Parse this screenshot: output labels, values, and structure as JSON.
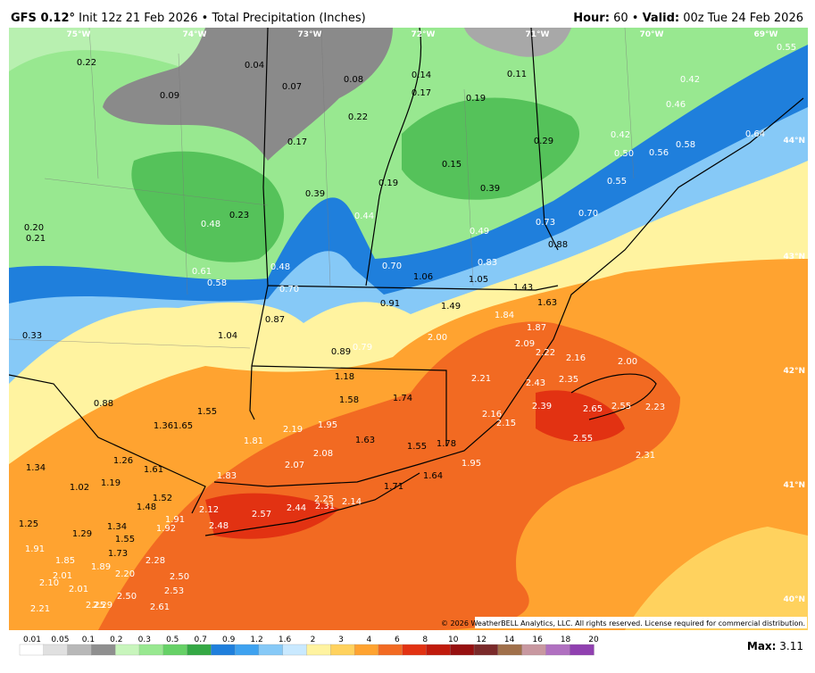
{
  "header": {
    "model": "GFS 0.12°",
    "init": "Init 12z 21 Feb 2026",
    "sep": "•",
    "product": "Total Precipitation (Inches)",
    "hour_label": "Hour:",
    "hour": "60",
    "valid_label": "Valid:",
    "valid": "00z Tue 24 Feb 2026"
  },
  "longitudes": [
    "75°W",
    "74°W",
    "73°W",
    "72°W",
    "71°W",
    "70°W",
    "69°W"
  ],
  "latitudes": [
    "44°N",
    "43°N",
    "42°N",
    "41°N",
    "40°N"
  ],
  "station_values": [
    "0.22",
    "0.04",
    "0.07",
    "0.08",
    "0.14",
    "0.11",
    "0.55",
    "0.09",
    "0.17",
    "0.19",
    "0.42",
    "0.46",
    "0.22",
    "0.17",
    "0.29",
    "0.42",
    "0.58",
    "0.64",
    "0.15",
    "0.50",
    "0.56",
    "0.19",
    "0.39",
    "0.39",
    "0.55",
    "0.23",
    "0.44",
    "0.70",
    "0.73",
    "0.20",
    "0.21",
    "0.48",
    "0.49",
    "0.88",
    "0.83",
    "0.61",
    "0.48",
    "0.70",
    "0.58",
    "1.06",
    "1.05",
    "1.43",
    "0.70",
    "0.91",
    "1.49",
    "1.63",
    "0.87",
    "1.84",
    "1.87",
    "0.33",
    "1.04",
    "2.00",
    "2.09",
    "0.89",
    "0.79",
    "2.22",
    "2.16",
    "2.00",
    "1.18",
    "2.21",
    "2.43",
    "2.35",
    "0.88",
    "1.58",
    "1.74",
    "1.55",
    "2.39",
    "2.65",
    "2.55",
    "2.23",
    "2.16",
    "2.15",
    "1.95",
    "1.36",
    "1.65",
    "2.19",
    "1.81",
    "1.63",
    "1.55",
    "1.78",
    "2.55",
    "2.08",
    "2.31",
    "1.34",
    "1.26",
    "1.61",
    "2.07",
    "1.95",
    "1.64",
    "1.83",
    "1.02",
    "1.19",
    "1.71",
    "1.52",
    "2.25",
    "2.31",
    "2.14",
    "1.48",
    "2.12",
    "2.44",
    "2.57",
    "1.91",
    "1.25",
    "1.34",
    "1.92",
    "2.48",
    "1.29",
    "1.55",
    "1.91",
    "1.73",
    "1.85",
    "2.28",
    "1.89",
    "2.01",
    "2.20",
    "2.50",
    "2.10",
    "2.01",
    "2.53",
    "2.50",
    "2.21",
    "2.25",
    "2.29",
    "2.61"
  ],
  "colorbar": {
    "labels": [
      "0.01",
      "0.05",
      "0.1",
      "0.2",
      "0.3",
      "0.5",
      "0.7",
      "0.9",
      "1.2",
      "1.6",
      "2",
      "3",
      "4",
      "6",
      "8",
      "10",
      "12",
      "14",
      "16",
      "18",
      "20"
    ],
    "colors": [
      "#ffffff",
      "#e0e0e0",
      "#b8b8b8",
      "#8f8f8f",
      "#c8f5bc",
      "#98e890",
      "#66d166",
      "#34a844",
      "#1f7fdc",
      "#3ea2f0",
      "#86c9f7",
      "#c9e9ff",
      "#fff3a0",
      "#ffd25e",
      "#ffa330",
      "#f26a22",
      "#e23212",
      "#c01a0c",
      "#961010",
      "#7a2a2a",
      "#a0704a",
      "#c898a0",
      "#b070c0",
      "#9040b0"
    ]
  },
  "footer": {
    "max_label": "Max:",
    "max": "3.11",
    "copyright": "© 2026 WeatherBELL Analytics, LLC. All rights reserved. License required for commercial distribution."
  }
}
